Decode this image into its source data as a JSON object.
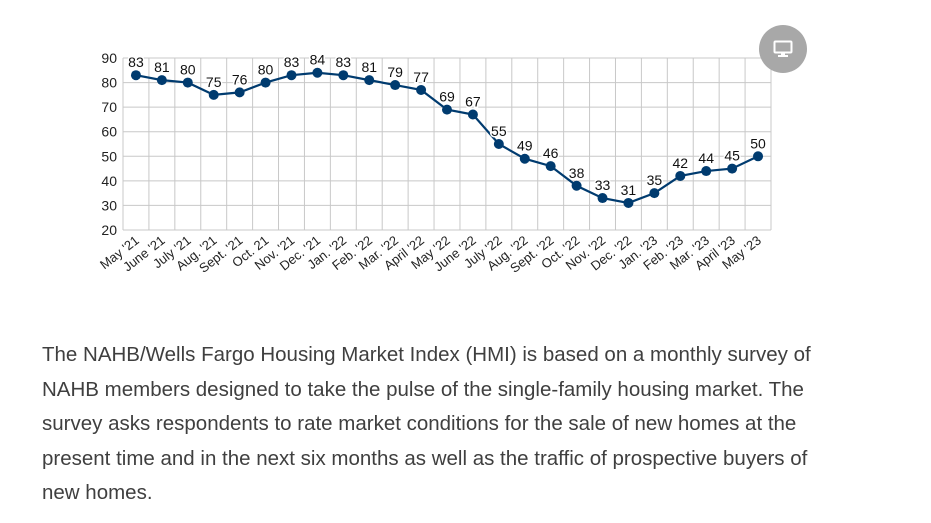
{
  "chart_data": {
    "type": "line",
    "title": "",
    "xlabel": "",
    "ylabel": "",
    "ylim": [
      20,
      90
    ],
    "yticks": [
      "90",
      "80",
      "70",
      "60",
      "50",
      "40",
      "30",
      "20"
    ],
    "grid": true,
    "categories": [
      "May '21",
      "June '21",
      "July '21",
      "Aug. '21",
      "Sept. '21",
      "Oct. 21",
      "Nov. '21",
      "Dec. '21",
      "Jan. '22",
      "Feb. '22",
      "Mar. '22",
      "April '22",
      "May '22",
      "June '22",
      "July '22",
      "Aug. '22",
      "Sept. '22",
      "Oct. '22",
      "Nov. '22",
      "Dec. '22",
      "Jan. '23",
      "Feb. '23",
      "Mar. '23",
      "April '23",
      "May '23"
    ],
    "series": [
      {
        "values": [
          83,
          81,
          80,
          75,
          76,
          80,
          83,
          84,
          83,
          81,
          79,
          77,
          69,
          67,
          55,
          49,
          46,
          38,
          33,
          31,
          35,
          42,
          44,
          45,
          50
        ]
      }
    ],
    "colors": {
      "line": "#003b6f",
      "grid": "#c8c8c8",
      "text": "#222222"
    }
  },
  "description": "The NAHB/Wells Fargo Housing Market Index (HMI) is based on a monthly survey of NAHB members designed to take the pulse of the single-family housing market. The survey asks respondents to rate market conditions for the sale of new homes at the present time and in the next six months as well as the traffic of prospective buyers of new homes.",
  "screen_button": {
    "icon": "monitor-icon"
  }
}
